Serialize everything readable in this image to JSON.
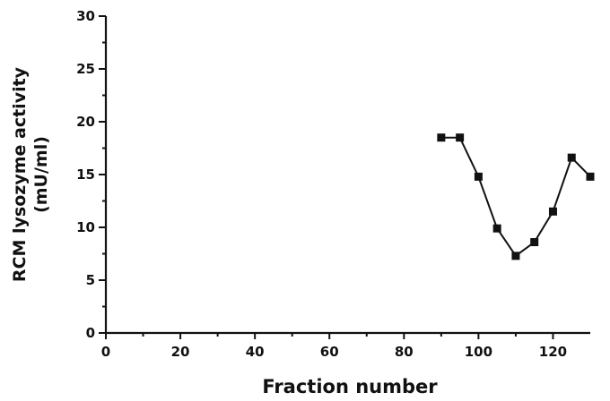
{
  "chart_data": {
    "type": "line",
    "title": "",
    "xlabel": "Fraction number",
    "ylabel_lines": [
      "RCM lysozyme activity",
      "(mU/ml)"
    ],
    "xlim": [
      0,
      130
    ],
    "ylim": [
      0,
      30
    ],
    "x_ticks": [
      0,
      20,
      40,
      60,
      80,
      100,
      120
    ],
    "x_tick_labels": [
      "0",
      "20",
      "40",
      "60",
      "80",
      "100",
      "120"
    ],
    "y_ticks": [
      0,
      5,
      10,
      15,
      20,
      25,
      30
    ],
    "y_tick_labels": [
      "0",
      "5",
      "10",
      "15",
      "20",
      "25",
      "30"
    ],
    "grid": false,
    "series": [
      {
        "marker": "square",
        "color": "#111111",
        "x": [
          90,
          95,
          100,
          105,
          110,
          115,
          120,
          125,
          130
        ],
        "y": [
          18.5,
          18.5,
          14.8,
          9.9,
          7.3,
          8.6,
          11.5,
          16.6,
          14.8
        ]
      }
    ]
  }
}
